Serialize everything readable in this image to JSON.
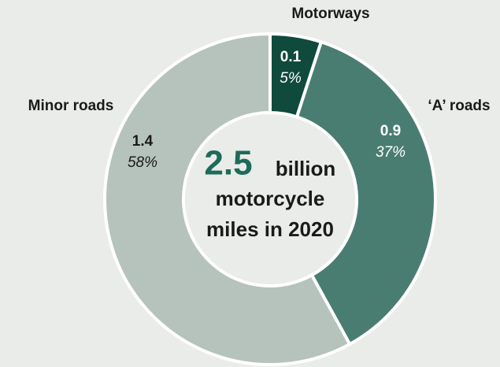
{
  "chart_data": {
    "type": "donut",
    "categories": [
      "Motorways",
      "‘A’ roads",
      "Minor roads"
    ],
    "values": [
      0.1,
      0.9,
      1.4
    ],
    "shares": [
      5,
      37,
      58
    ],
    "share_labels": [
      "5%",
      "37%",
      "58%"
    ],
    "colors": [
      "#0f4a3c",
      "#4a7d71",
      "#b6c3bd"
    ],
    "label_colors": [
      "#ffffff",
      "#ffffff",
      "#1a1a1a"
    ],
    "total": 2.5,
    "total_color": "#1d6b58",
    "center_text": [
      "billion",
      "motorcycle",
      "miles in 2020"
    ]
  }
}
